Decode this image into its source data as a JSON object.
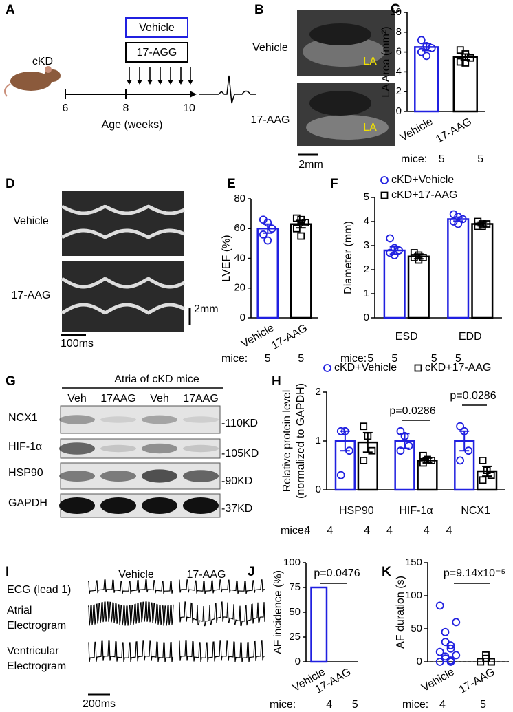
{
  "diagram_A": {
    "label": "A",
    "animal": "cKD",
    "groups": [
      "Vehicle",
      "17-AGG"
    ],
    "ages": [
      6,
      8,
      10
    ],
    "xlabel": "Age (weeks)"
  },
  "images_B": {
    "label": "B",
    "rows": [
      "Vehicle",
      "17-AAG"
    ],
    "markers": [
      "LA",
      "LA"
    ],
    "scale": "2mm"
  },
  "images_D": {
    "label": "D",
    "rows": [
      "Vehicle",
      "17-AAG"
    ],
    "scale_y": "2mm",
    "scale_x": "100ms"
  },
  "blot_G": {
    "label": "G",
    "title": "Atria of cKD mice",
    "lanes": [
      "Veh",
      "17AAG",
      "Veh",
      "17AAG"
    ],
    "proteins": [
      "NCX1",
      "HIF-1α",
      "HSP90",
      "GAPDH"
    ],
    "sizes": [
      "-110KD",
      "-105KD",
      "-90KD",
      "-37KD"
    ]
  },
  "traces_I": {
    "label": "I",
    "columns": [
      "Vehicle",
      "17-AAG"
    ],
    "rows": [
      [
        "ECG (lead 1)"
      ],
      [
        "Atrial",
        "Electrogram"
      ],
      [
        "Ventricular",
        "Electrogram"
      ]
    ],
    "scale": "200ms"
  },
  "chart_data": [
    {
      "label": "C",
      "type": "bar",
      "ylabel": "LA Area (mm²)",
      "categories": [
        "Vehicle",
        "17-AAG"
      ],
      "values": [
        6.5,
        5.5
      ],
      "errors": [
        0.35,
        0.3
      ],
      "points": [
        [
          7.2,
          6.6,
          6.4,
          6.0,
          5.6
        ],
        [
          6.2,
          5.8,
          5.4,
          5.0,
          4.9
        ]
      ],
      "colors": [
        "#2020e0",
        "#000000"
      ],
      "markers": [
        "circle",
        "square"
      ],
      "ylim": [
        0,
        10
      ],
      "yticks": [
        0,
        2,
        4,
        6,
        8,
        10
      ],
      "mice_label": "mice:",
      "mice": [
        5,
        5
      ]
    },
    {
      "label": "E",
      "type": "bar",
      "ylabel": "LVEF (%)",
      "categories": [
        "Vehicle",
        "17-AAG"
      ],
      "values": [
        60,
        63
      ],
      "errors": [
        3,
        2.5
      ],
      "points": [
        [
          66,
          64,
          60,
          56,
          52
        ],
        [
          67,
          66,
          64,
          60,
          55
        ]
      ],
      "colors": [
        "#2020e0",
        "#000000"
      ],
      "markers": [
        "circle",
        "square"
      ],
      "ylim": [
        0,
        80
      ],
      "yticks": [
        0,
        20,
        40,
        60,
        80
      ],
      "mice_label": "mice:",
      "mice": [
        5,
        5
      ]
    },
    {
      "label": "F",
      "type": "grouped_bar",
      "ylabel": "Diameter (mm)",
      "categories": [
        "ESD",
        "EDD"
      ],
      "series": [
        {
          "name": "cKD+Vehicle",
          "color": "#2020e0",
          "marker": "circle",
          "values": [
            2.8,
            4.1
          ],
          "errors": [
            0.15,
            0.08
          ],
          "points": [
            [
              3.3,
              2.9,
              2.8,
              2.7,
              2.6
            ],
            [
              4.3,
              4.2,
              4.1,
              4.0,
              3.9
            ]
          ]
        },
        {
          "name": "cKD+17-AAG",
          "color": "#000000",
          "marker": "square",
          "values": [
            2.55,
            3.9
          ],
          "errors": [
            0.1,
            0.08
          ],
          "points": [
            [
              2.7,
              2.6,
              2.5,
              2.5,
              2.4
            ],
            [
              4.0,
              3.9,
              3.9,
              3.8,
              3.8
            ]
          ]
        }
      ],
      "ylim": [
        0,
        5
      ],
      "yticks": [
        0,
        1,
        2,
        3,
        4,
        5
      ],
      "mice_label": "mice:",
      "mice": [
        5,
        5,
        5,
        5
      ]
    },
    {
      "label": "H",
      "type": "grouped_bar",
      "ylabel": [
        "Relative protein level",
        "(normalized to GAPDH)"
      ],
      "categories": [
        "HSP90",
        "HIF-1α",
        "NCX1"
      ],
      "series": [
        {
          "name": "cKD+Vehicle",
          "color": "#2020e0",
          "marker": "circle",
          "values": [
            1,
            1,
            1
          ],
          "errors": [
            0.2,
            0.15,
            0.2
          ],
          "points": [
            [
              1.2,
              1.2,
              0.8,
              0.3
            ],
            [
              1.2,
              1.1,
              0.9,
              0.8
            ],
            [
              1.3,
              1.2,
              0.8,
              0.6
            ]
          ]
        },
        {
          "name": "cKD+17-AAG",
          "color": "#000000",
          "marker": "square",
          "values": [
            0.97,
            0.6,
            0.38
          ],
          "errors": [
            0.2,
            0.05,
            0.1
          ],
          "points": [
            [
              1.3,
              1.1,
              0.8,
              0.6
            ],
            [
              0.7,
              0.62,
              0.6,
              0.55
            ],
            [
              0.6,
              0.4,
              0.3,
              0.2
            ]
          ]
        }
      ],
      "annotations": [
        "p=0.0286",
        "p=0.0286"
      ],
      "ylim": [
        0,
        2
      ],
      "yticks": [
        0,
        1,
        2
      ],
      "mice_label": "mice:",
      "mice": [
        4,
        4,
        4,
        4,
        4,
        4
      ]
    },
    {
      "label": "J",
      "type": "bar",
      "ylabel": "AF incidence (%)",
      "categories": [
        "Vehicle",
        "17-AAG"
      ],
      "values": [
        75,
        0
      ],
      "colors": [
        "#2020e0",
        "#000000"
      ],
      "annotations": [
        "p=0.0476"
      ],
      "ylim": [
        0,
        100
      ],
      "yticks": [
        0,
        25,
        50,
        75,
        100
      ],
      "mice_label": "mice:",
      "mice": [
        4,
        5
      ]
    },
    {
      "label": "K",
      "type": "dot_plot",
      "ylabel": "AF duration (s)",
      "categories": [
        "Vehicle",
        "17-AAG"
      ],
      "points": [
        [
          0,
          0,
          2,
          5,
          8,
          10,
          15,
          20,
          25,
          30,
          45,
          60,
          85
        ],
        [
          0,
          0,
          0,
          5,
          10
        ]
      ],
      "colors": [
        "#2020e0",
        "#000000"
      ],
      "markers": [
        "circle",
        "square"
      ],
      "annotations": [
        "p=9.14x10⁻⁵"
      ],
      "ylim": [
        0,
        150
      ],
      "yticks": [
        0,
        50,
        100,
        150
      ],
      "mice_label": "mice:",
      "mice": [
        4,
        5
      ]
    }
  ]
}
